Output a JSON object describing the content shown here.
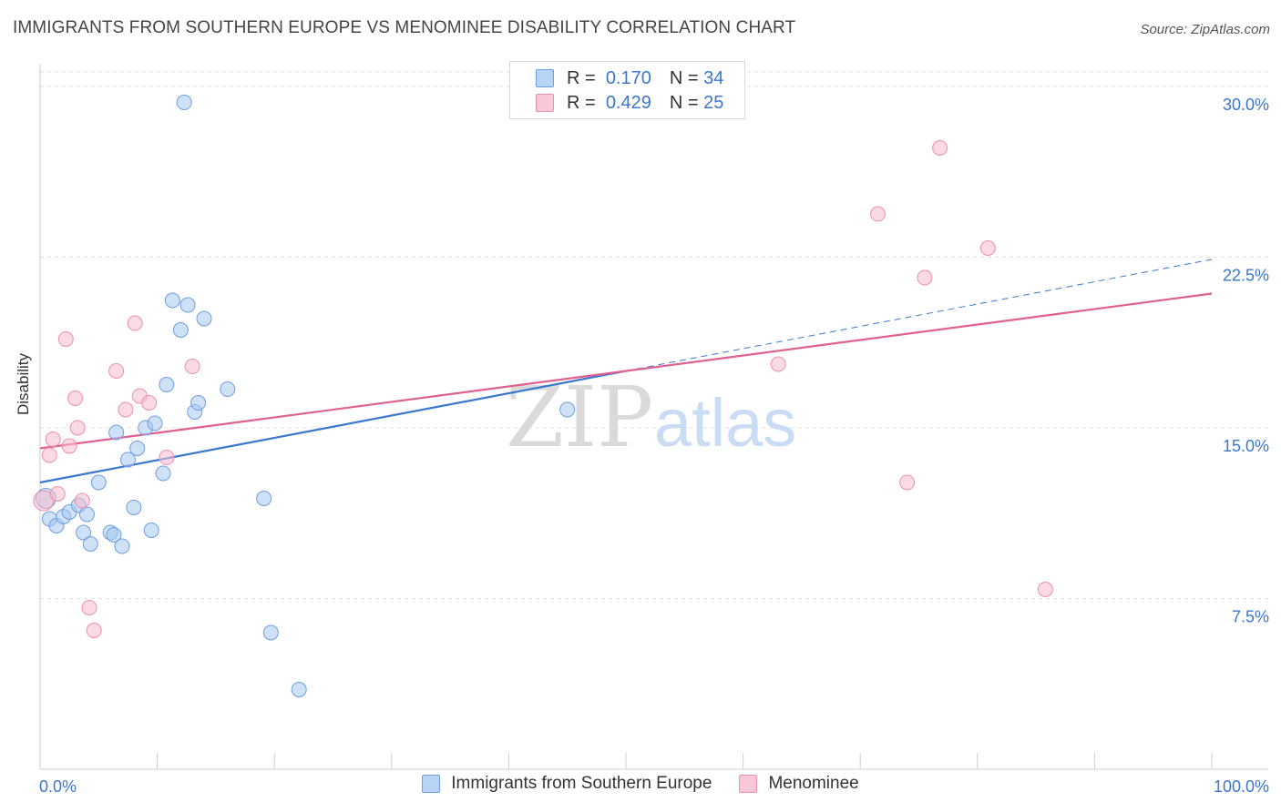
{
  "title": "IMMIGRANTS FROM SOUTHERN EUROPE VS MENOMINEE DISABILITY CORRELATION CHART",
  "source": "Source: ZipAtlas.com",
  "watermark": {
    "zip": "ZIP",
    "atlas": "atlas"
  },
  "legend": {
    "rows": [
      {
        "r_label": "R =",
        "r_value": "0.170",
        "n_label": "N =",
        "n_value": "34"
      },
      {
        "r_label": "R =",
        "r_value": "0.429",
        "n_label": "N =",
        "n_value": "25"
      }
    ]
  },
  "chart_data": {
    "type": "scatter",
    "title": "IMMIGRANTS FROM SOUTHERN EUROPE VS MENOMINEE DISABILITY CORRELATION CHART",
    "xlabel": "",
    "ylabel": "Disability",
    "xlim": [
      0,
      100
    ],
    "ylim": [
      0,
      31
    ],
    "x_tick_labels": [
      "0.0%",
      "100.0%"
    ],
    "y_ticks": [
      7.5,
      15.0,
      22.5,
      30.0
    ],
    "y_tick_labels": [
      "7.5%",
      "15.0%",
      "22.5%",
      "30.0%"
    ],
    "grid": true,
    "series": [
      {
        "name": "Immigrants from Southern Europe",
        "color": "#a8c8f0",
        "edge": "#6f9fe0",
        "line_color": "#3a78d0",
        "trend": {
          "x0": 0,
          "y0": 12.6,
          "x1": 100,
          "y1": 22.4,
          "solid_until": 50
        },
        "points": [
          [
            0.5,
            11.9
          ],
          [
            0.8,
            11.0
          ],
          [
            1.4,
            10.7
          ],
          [
            2.0,
            11.1
          ],
          [
            2.5,
            11.3
          ],
          [
            3.3,
            11.6
          ],
          [
            4.0,
            11.2
          ],
          [
            3.7,
            10.4
          ],
          [
            4.3,
            9.9
          ],
          [
            5.0,
            12.6
          ],
          [
            6.0,
            10.4
          ],
          [
            6.3,
            10.3
          ],
          [
            6.5,
            14.8
          ],
          [
            7.0,
            9.8
          ],
          [
            7.5,
            13.6
          ],
          [
            8.0,
            11.5
          ],
          [
            8.3,
            14.1
          ],
          [
            9.0,
            15.0
          ],
          [
            9.5,
            10.5
          ],
          [
            9.8,
            15.2
          ],
          [
            10.5,
            13.0
          ],
          [
            10.8,
            16.9
          ],
          [
            11.3,
            20.6
          ],
          [
            12.0,
            19.3
          ],
          [
            12.3,
            29.3
          ],
          [
            12.6,
            20.4
          ],
          [
            13.2,
            15.7
          ],
          [
            13.5,
            16.1
          ],
          [
            14.0,
            19.8
          ],
          [
            16.0,
            16.7
          ],
          [
            19.1,
            11.9
          ],
          [
            19.7,
            6.0
          ],
          [
            22.1,
            3.5
          ],
          [
            45.0,
            15.8
          ]
        ]
      },
      {
        "name": "Menominee",
        "color": "#f7bcd0",
        "edge": "#ee8fae",
        "line_color": "#e0608f",
        "trend": {
          "x0": 0,
          "y0": 14.1,
          "x1": 100,
          "y1": 20.9
        },
        "points": [
          [
            0.3,
            11.8
          ],
          [
            0.8,
            13.8
          ],
          [
            1.1,
            14.5
          ],
          [
            1.5,
            12.1
          ],
          [
            2.2,
            18.9
          ],
          [
            2.5,
            14.2
          ],
          [
            3.0,
            16.3
          ],
          [
            3.2,
            15.0
          ],
          [
            3.6,
            11.8
          ],
          [
            4.2,
            7.1
          ],
          [
            4.6,
            6.1
          ],
          [
            6.5,
            17.5
          ],
          [
            7.3,
            15.8
          ],
          [
            8.1,
            19.6
          ],
          [
            8.5,
            16.4
          ],
          [
            9.3,
            16.1
          ],
          [
            10.8,
            13.7
          ],
          [
            13.0,
            17.7
          ],
          [
            63.0,
            17.8
          ],
          [
            71.5,
            24.4
          ],
          [
            74.0,
            12.6
          ],
          [
            75.5,
            21.6
          ],
          [
            76.8,
            27.3
          ],
          [
            80.9,
            22.9
          ],
          [
            85.8,
            7.9
          ]
        ]
      }
    ]
  }
}
